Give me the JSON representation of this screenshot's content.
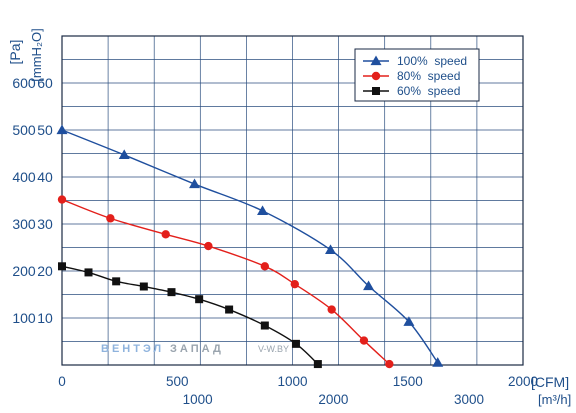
{
  "chart_data": {
    "type": "line",
    "y_axis_left_units": [
      "[Pa]",
      "[mmH₂O]"
    ],
    "y_ticks_pa": [
      "600",
      "500",
      "400",
      "300",
      "200",
      "100"
    ],
    "y_ticks_mmh2o": [
      "60",
      "50",
      "40",
      "30",
      "20",
      "10"
    ],
    "x_unit_primary": "[CFM]",
    "x_unit_secondary": "[m³/h]",
    "x_ticks_cfm": [
      "0",
      "500",
      "1000",
      "1500",
      "2000"
    ],
    "x_ticks_m3h": [
      "1000",
      "2000",
      "3000"
    ],
    "xlim_cfm": [
      0,
      2000
    ],
    "ylim_pa": [
      0,
      700
    ],
    "grid": true,
    "legend_position": "top-right",
    "series": [
      {
        "name": "100%  speed",
        "color": "#1f4f9e",
        "marker": "triangle",
        "x": [
          0,
          270,
          575,
          870,
          1165,
          1330,
          1505,
          1630
        ],
        "y": [
          500,
          447,
          385,
          328,
          245,
          168,
          92,
          5
        ]
      },
      {
        "name": "80%  speed",
        "color": "#e3201b",
        "marker": "circle",
        "x": [
          0,
          210,
          450,
          635,
          880,
          1010,
          1170,
          1310,
          1420
        ],
        "y": [
          352,
          312,
          278,
          253,
          210,
          172,
          118,
          52,
          2
        ]
      },
      {
        "name": "60%  speed",
        "color": "#111111",
        "marker": "square",
        "x": [
          0,
          115,
          235,
          355,
          475,
          595,
          725,
          880,
          1015,
          1110
        ],
        "y": [
          210,
          197,
          178,
          167,
          155,
          140,
          118,
          84,
          45,
          2
        ]
      }
    ]
  },
  "watermark": {
    "part1": "ВЕНТЭЛ",
    "part2": "ЗАПАД",
    "part3": "V-W.BY"
  }
}
